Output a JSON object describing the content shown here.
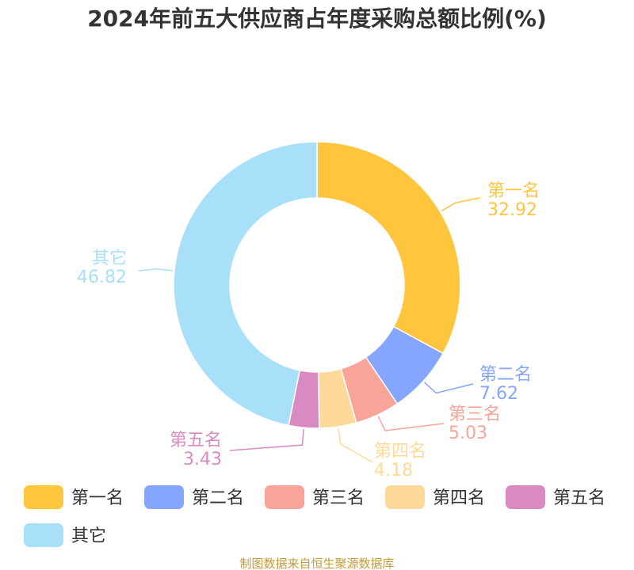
{
  "chart_data": {
    "type": "pie",
    "style": "donut",
    "title": "2024年前五大供应商占年度采购总额比例(%)",
    "slices": [
      {
        "label": "第一名",
        "value": 32.92,
        "value_text": "32.92",
        "color": "#FFC53D"
      },
      {
        "label": "第二名",
        "value": 7.62,
        "value_text": "7.62",
        "color": "#85A5FF"
      },
      {
        "label": "第三名",
        "value": 5.03,
        "value_text": "5.03",
        "color": "#F8A499"
      },
      {
        "label": "第四名",
        "value": 4.18,
        "value_text": "4.18",
        "color": "#FFD99A"
      },
      {
        "label": "第五名",
        "value": 3.43,
        "value_text": "3.43",
        "color": "#DA8AC2"
      },
      {
        "label": "其它",
        "value": 46.82,
        "value_text": "46.82",
        "color": "#A8E0FA"
      }
    ],
    "legend": {
      "position": "bottom",
      "entries": [
        "第一名",
        "第二名",
        "第三名",
        "第四名",
        "第五名",
        "其它"
      ]
    }
  },
  "source_text": "制图数据来自恒生聚源数据库"
}
